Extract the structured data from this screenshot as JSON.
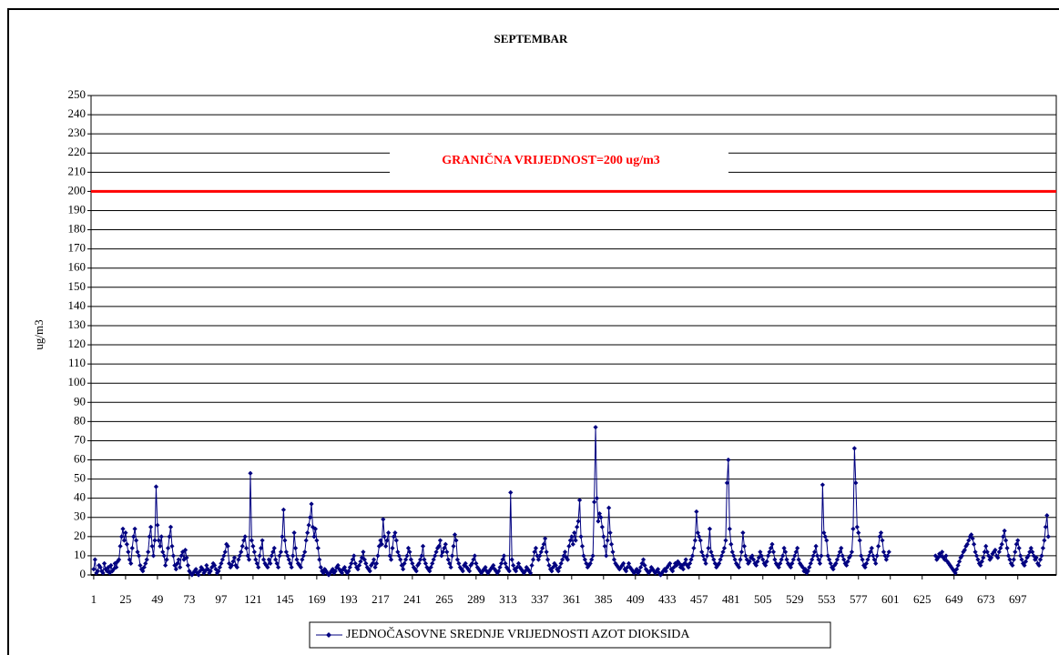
{
  "chart_data": {
    "type": "line",
    "title": "SEPTEMBAR",
    "y_label": "ug/m3",
    "annotation": "GRANIČNA VRIJEDNOST=200 ug/m3",
    "limit": 200,
    "limit_color": "#ff0000",
    "xlim": [
      -1,
      726
    ],
    "xticks": [
      1,
      25,
      49,
      73,
      97,
      121,
      145,
      169,
      193,
      217,
      241,
      265,
      289,
      313,
      337,
      361,
      385,
      409,
      433,
      457,
      481,
      505,
      529,
      553,
      577,
      601,
      625,
      649,
      673,
      697
    ],
    "ylim": [
      0,
      250
    ],
    "yticks": [
      0,
      10,
      20,
      30,
      40,
      50,
      60,
      70,
      80,
      90,
      100,
      110,
      120,
      130,
      140,
      150,
      160,
      170,
      180,
      190,
      200,
      210,
      220,
      230,
      240,
      250
    ],
    "grid": true,
    "legend": "bottom",
    "series": [
      {
        "name": "JEDNOČASOVNE SREDNJE VRIJEDNOSTI AZOT DIOKSIDA",
        "color": "#000080",
        "values": [
          3,
          8,
          1,
          2,
          5,
          4,
          2,
          1,
          6,
          3,
          2,
          4,
          1,
          5,
          2,
          3,
          6,
          4,
          7,
          8,
          15,
          20,
          24,
          18,
          22,
          16,
          12,
          8,
          6,
          14,
          20,
          24,
          18,
          12,
          10,
          5,
          3,
          2,
          4,
          6,
          8,
          12,
          20,
          25,
          15,
          10,
          18,
          46,
          26,
          18,
          15,
          20,
          12,
          10,
          5,
          8,
          14,
          20,
          25,
          15,
          10,
          5,
          3,
          6,
          8,
          4,
          10,
          12,
          8,
          13,
          9,
          5,
          2,
          1,
          0,
          1,
          2,
          3,
          1,
          0,
          2,
          4,
          3,
          1,
          2,
          5,
          3,
          1,
          2,
          4,
          6,
          5,
          3,
          1,
          2,
          4,
          6,
          8,
          10,
          12,
          16,
          15,
          6,
          4,
          5,
          7,
          9,
          5,
          4,
          8,
          10,
          12,
          15,
          18,
          20,
          14,
          10,
          8,
          53,
          18,
          15,
          12,
          8,
          6,
          4,
          10,
          14,
          18,
          8,
          6,
          5,
          4,
          8,
          6,
          10,
          12,
          14,
          8,
          6,
          4,
          10,
          12,
          20,
          34,
          18,
          12,
          10,
          8,
          6,
          4,
          10,
          22,
          14,
          8,
          6,
          5,
          4,
          8,
          10,
          12,
          18,
          22,
          26,
          30,
          37,
          25,
          20,
          24,
          18,
          14,
          8,
          4,
          2,
          1,
          3,
          2,
          1,
          0,
          1,
          2,
          3,
          1,
          2,
          4,
          5,
          3,
          2,
          1,
          3,
          4,
          2,
          1,
          2,
          4,
          6,
          8,
          10,
          6,
          4,
          3,
          5,
          7,
          9,
          12,
          8,
          6,
          4,
          3,
          2,
          5,
          6,
          8,
          4,
          6,
          10,
          15,
          18,
          16,
          29,
          20,
          15,
          18,
          22,
          10,
          8,
          14,
          20,
          22,
          18,
          12,
          10,
          8,
          5,
          3,
          6,
          8,
          10,
          14,
          12,
          8,
          6,
          4,
          3,
          2,
          5,
          6,
          8,
          10,
          15,
          8,
          6,
          4,
          3,
          2,
          4,
          6,
          8,
          10,
          12,
          14,
          15,
          18,
          10,
          12,
          14,
          16,
          12,
          8,
          6,
          4,
          10,
          15,
          21,
          18,
          8,
          6,
          4,
          3,
          2,
          5,
          6,
          4,
          3,
          2,
          5,
          6,
          8,
          10,
          6,
          4,
          3,
          2,
          1,
          2,
          3,
          4,
          2,
          1,
          2,
          3,
          4,
          5,
          3,
          2,
          1,
          2,
          4,
          6,
          8,
          10,
          6,
          4,
          3,
          2,
          43,
          8,
          5,
          3,
          2,
          4,
          6,
          4,
          3,
          2,
          1,
          2,
          4,
          3,
          2,
          1,
          5,
          8,
          12,
          14,
          10,
          8,
          10,
          12,
          14,
          16,
          19,
          12,
          8,
          5,
          3,
          2,
          4,
          6,
          5,
          3,
          2,
          4,
          6,
          8,
          10,
          12,
          9,
          8,
          15,
          18,
          20,
          16,
          22,
          18,
          25,
          28,
          39,
          20,
          15,
          10,
          8,
          6,
          4,
          5,
          6,
          8,
          10,
          38,
          77,
          40,
          28,
          32,
          30,
          25,
          20,
          15,
          10,
          18,
          35,
          22,
          16,
          12,
          8,
          6,
          5,
          4,
          3,
          4,
          5,
          6,
          3,
          2,
          4,
          6,
          4,
          3,
          2,
          1,
          2,
          3,
          1,
          2,
          4,
          6,
          8,
          5,
          3,
          2,
          1,
          2,
          4,
          3,
          2,
          1,
          2,
          3,
          1,
          0,
          1,
          2,
          3,
          2,
          4,
          5,
          6,
          3,
          2,
          4,
          6,
          5,
          7,
          6,
          4,
          5,
          3,
          6,
          8,
          5,
          4,
          6,
          8,
          10,
          14,
          18,
          33,
          22,
          20,
          18,
          12,
          10,
          8,
          6,
          10,
          14,
          24,
          12,
          10,
          8,
          6,
          4,
          5,
          6,
          8,
          10,
          12,
          14,
          18,
          48,
          60,
          24,
          16,
          12,
          10,
          8,
          6,
          5,
          4,
          8,
          12,
          22,
          15,
          10,
          8,
          6,
          7,
          9,
          10,
          8,
          6,
          5,
          7,
          9,
          12,
          10,
          8,
          6,
          5,
          7,
          10,
          12,
          14,
          16,
          12,
          8,
          6,
          5,
          4,
          6,
          8,
          10,
          14,
          12,
          8,
          6,
          5,
          4,
          6,
          8,
          10,
          12,
          14,
          8,
          6,
          5,
          4,
          2,
          3,
          1,
          2,
          4,
          6,
          8,
          10,
          12,
          15,
          10,
          8,
          6,
          10,
          47,
          22,
          20,
          18,
          10,
          8,
          6,
          4,
          3,
          5,
          6,
          8,
          10,
          12,
          14,
          10,
          8,
          6,
          5,
          7,
          9,
          10,
          12,
          24,
          66,
          48,
          25,
          22,
          18,
          10,
          8,
          5,
          4,
          6,
          8,
          10,
          12,
          14,
          10,
          8,
          6,
          10,
          15,
          20,
          22,
          18,
          12,
          10,
          8,
          10,
          12,
          null,
          null,
          null,
          null,
          null,
          null,
          null,
          null,
          null,
          null,
          null,
          null,
          null,
          null,
          null,
          null,
          null,
          null,
          null,
          null,
          null,
          null,
          null,
          null,
          null,
          null,
          null,
          null,
          null,
          null,
          null,
          null,
          null,
          null,
          10,
          8,
          9,
          11,
          10,
          12,
          9,
          8,
          10,
          7,
          6,
          5,
          4,
          3,
          2,
          1,
          3,
          5,
          7,
          9,
          10,
          12,
          13,
          15,
          16,
          18,
          20,
          21,
          19,
          16,
          12,
          10,
          8,
          6,
          5,
          7,
          9,
          12,
          15,
          12,
          10,
          8,
          9,
          11,
          12,
          13,
          10,
          9,
          12,
          14,
          16,
          20,
          23,
          18,
          14,
          10,
          8,
          6,
          5,
          8,
          12,
          16,
          18,
          14,
          10,
          8,
          6,
          5,
          7,
          9,
          10,
          12,
          14,
          12,
          10,
          8,
          9,
          6,
          5,
          8,
          10,
          14,
          18,
          25,
          31,
          20
        ]
      }
    ]
  }
}
